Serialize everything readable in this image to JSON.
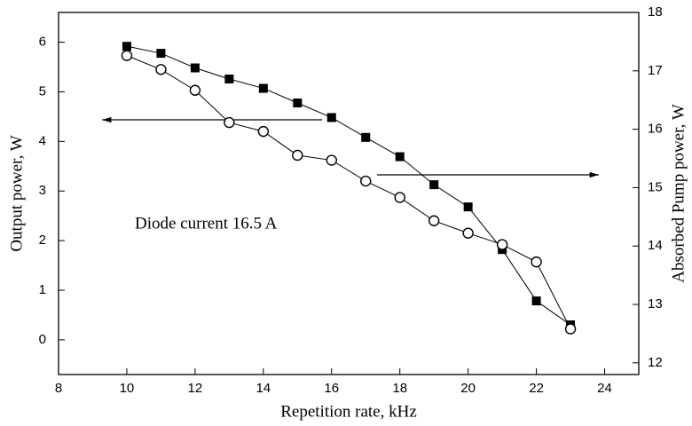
{
  "chart_data": {
    "type": "line",
    "x_label": "Repetition rate, kHz",
    "y_label": "Output power, W",
    "y2_label": "Absorbed Pump power, W",
    "annotation": "Diode current 16.5 A",
    "x": [
      10,
      11,
      12,
      13,
      14,
      15,
      16,
      17,
      18,
      19,
      20,
      21,
      22,
      23
    ],
    "series": [
      {
        "marker": "square",
        "color": "#000",
        "axis": "y2",
        "values": [
          17.42,
          17.3,
          17.05,
          16.86,
          16.7,
          16.45,
          16.2,
          15.86,
          15.53,
          15.05,
          14.67,
          13.94,
          13.06,
          12.65
        ]
      },
      {
        "marker": "circle",
        "color": "#000",
        "values": [
          5.73,
          5.45,
          5.03,
          4.38,
          4.2,
          3.72,
          3.62,
          3.2,
          2.87,
          2.4,
          2.15,
          1.92,
          1.57,
          0.22
        ]
      }
    ],
    "xlim": [
      8,
      25
    ],
    "xticks": [
      8,
      10,
      12,
      14,
      16,
      18,
      20,
      22,
      24
    ],
    "ylim": [
      -0.7,
      6.6
    ],
    "yticks": [
      0,
      1,
      2,
      3,
      4,
      5,
      6
    ],
    "y2lim": [
      11.8,
      18
    ],
    "y2ticks": [
      12,
      13,
      14,
      15,
      16,
      17,
      18
    ]
  }
}
